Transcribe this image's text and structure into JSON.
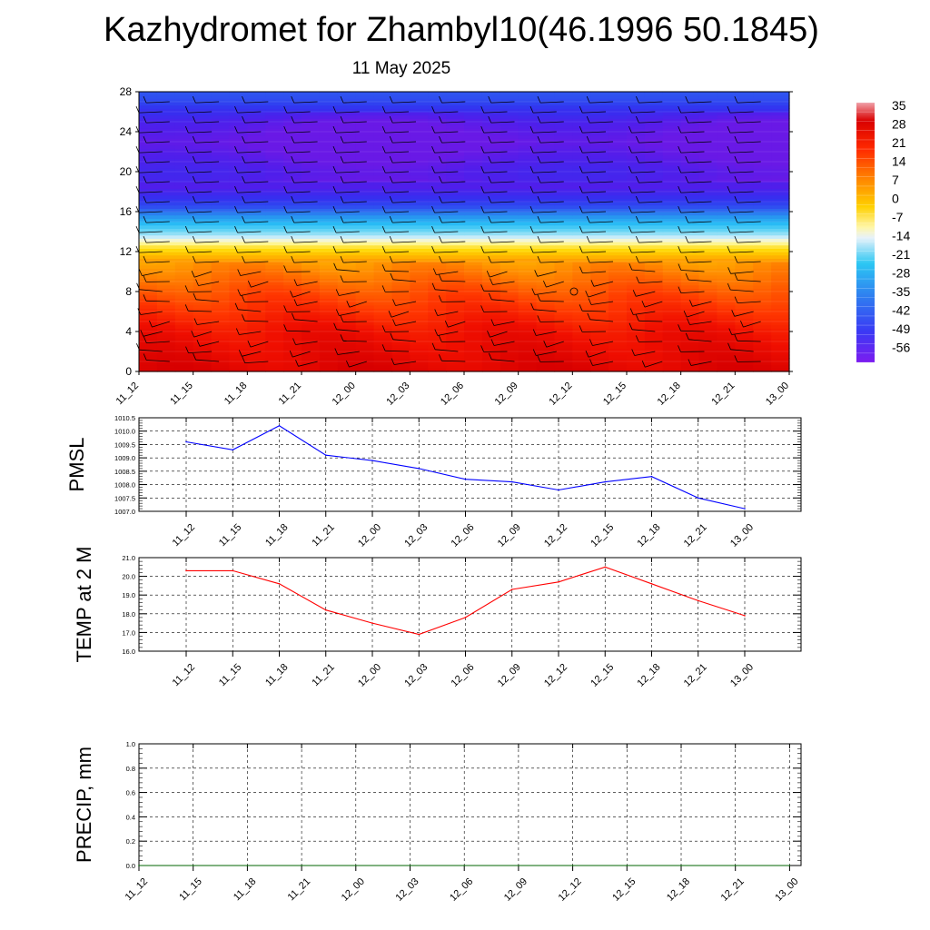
{
  "title": "Kazhydromet for Zhambyl10(46.1996 50.1845)",
  "subtitle": "11 May 2025",
  "colorbar": {
    "labels": [
      "35",
      "28",
      "21",
      "14",
      "7",
      "0",
      "-7",
      "-14",
      "-21",
      "-28",
      "-35",
      "-42",
      "-49",
      "-56"
    ]
  },
  "chart_data": [
    {
      "type": "heatmap",
      "name": "cross-section",
      "ylim": [
        0,
        28
      ],
      "yticks": [
        "0",
        "4",
        "8",
        "12",
        "16",
        "20",
        "24",
        "28"
      ],
      "xticks": [
        "11_12",
        "11_15",
        "11_18",
        "11_21",
        "12_00",
        "12_03",
        "12_06",
        "12_09",
        "12_12",
        "12_15",
        "12_18",
        "12_21",
        "13_00"
      ],
      "value_range": [
        -60,
        38
      ],
      "temperature_profile": [
        {
          "level": 0,
          "value": 33
        },
        {
          "level": 4,
          "value": 28
        },
        {
          "level": 8,
          "value": 18
        },
        {
          "level": 11,
          "value": 9
        },
        {
          "level": 12.5,
          "value": -3
        },
        {
          "level": 13.5,
          "value": -16
        },
        {
          "level": 15,
          "value": -30
        },
        {
          "level": 16.5,
          "value": -45
        },
        {
          "level": 18.5,
          "value": -56
        },
        {
          "level": 20,
          "value": -54
        },
        {
          "level": 23,
          "value": -60
        },
        {
          "level": 25,
          "value": -56
        },
        {
          "level": 27,
          "value": -46
        },
        {
          "level": 28,
          "value": -44
        }
      ]
    },
    {
      "type": "line",
      "ylabel": "PMSL",
      "ylim": [
        1007.0,
        1010.5
      ],
      "yticks": [
        "1007.0",
        "1007.5",
        "1008.0",
        "1008.5",
        "1009.0",
        "1009.5",
        "1010.0",
        "1010.5"
      ],
      "x": [
        "11_12",
        "11_15",
        "11_18",
        "11_21",
        "12_00",
        "12_03",
        "12_06",
        "12_09",
        "12_12",
        "12_15",
        "12_18",
        "12_21",
        "13_00"
      ],
      "values": [
        1009.6,
        1009.3,
        1010.2,
        1009.1,
        1008.9,
        1008.6,
        1008.2,
        1008.1,
        1007.8,
        1008.1,
        1008.3,
        1007.5,
        1007.1
      ],
      "color": "#0000ff",
      "grid": true
    },
    {
      "type": "line",
      "ylabel": "TEMP at 2 M",
      "ylim": [
        16.0,
        21.0
      ],
      "yticks": [
        "16.0",
        "17.0",
        "18.0",
        "19.0",
        "20.0",
        "21.0"
      ],
      "x": [
        "11_12",
        "11_15",
        "11_18",
        "11_21",
        "12_00",
        "12_03",
        "12_06",
        "12_09",
        "12_12",
        "12_15",
        "12_18",
        "12_21",
        "13_00"
      ],
      "values": [
        20.3,
        20.3,
        19.6,
        18.2,
        17.5,
        16.9,
        17.8,
        19.3,
        19.7,
        20.5,
        19.6,
        18.7,
        17.9
      ],
      "color": "#ff0000",
      "grid": true
    },
    {
      "type": "line",
      "ylabel": "PRECIP, mm",
      "ylim": [
        0.0,
        1.0
      ],
      "yticks": [
        "0.0",
        "0.2",
        "0.4",
        "0.6",
        "0.8",
        "1.0"
      ],
      "x": [
        "11_12",
        "11_15",
        "11_18",
        "11_21",
        "12_00",
        "12_03",
        "12_06",
        "12_09",
        "12_12",
        "12_15",
        "12_18",
        "12_21",
        "13_00"
      ],
      "values": [
        0,
        0,
        0,
        0,
        0,
        0,
        0,
        0,
        0,
        0,
        0,
        0,
        0
      ],
      "color": "#006400",
      "grid": true
    }
  ]
}
